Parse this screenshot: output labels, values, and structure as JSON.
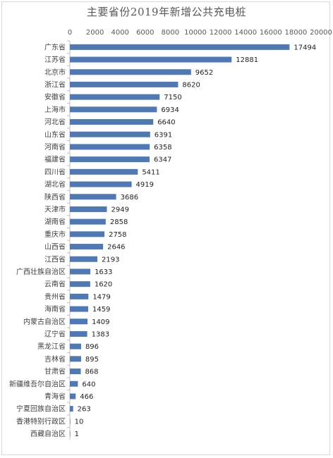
{
  "chart_data": {
    "type": "bar",
    "orientation": "horizontal",
    "title": "主要省份2019年新增公共充电桩",
    "xlim": [
      0,
      20000
    ],
    "xticks": [
      "0",
      "2000",
      "4000",
      "6000",
      "8000",
      "10000",
      "12000",
      "14000",
      "16000",
      "18000",
      "20000"
    ],
    "axis_position": "top",
    "grid": false,
    "bar_color": "#4e79b5",
    "categories": [
      "广东省",
      "江苏省",
      "北京市",
      "浙江省",
      "安徽省",
      "上海市",
      "河北省",
      "山东省",
      "河南省",
      "福建省",
      "四川省",
      "湖北省",
      "陕西省",
      "天津市",
      "湖南省",
      "重庆市",
      "山西省",
      "江西省",
      "广西壮族自治区",
      "云南省",
      "贵州省",
      "海南省",
      "内蒙古自治区",
      "辽宁省",
      "黑龙江省",
      "吉林省",
      "甘肃省",
      "新疆维吾尔自治区",
      "青海省",
      "宁夏回族自治区",
      "香港特别行政区",
      "西藏自治区"
    ],
    "values": [
      17494,
      12881,
      9652,
      8620,
      7150,
      6934,
      6640,
      6391,
      6358,
      6347,
      5411,
      4919,
      3686,
      2949,
      2858,
      2758,
      2646,
      2193,
      1633,
      1620,
      1479,
      1459,
      1409,
      1383,
      896,
      895,
      868,
      640,
      466,
      263,
      10,
      1
    ]
  }
}
